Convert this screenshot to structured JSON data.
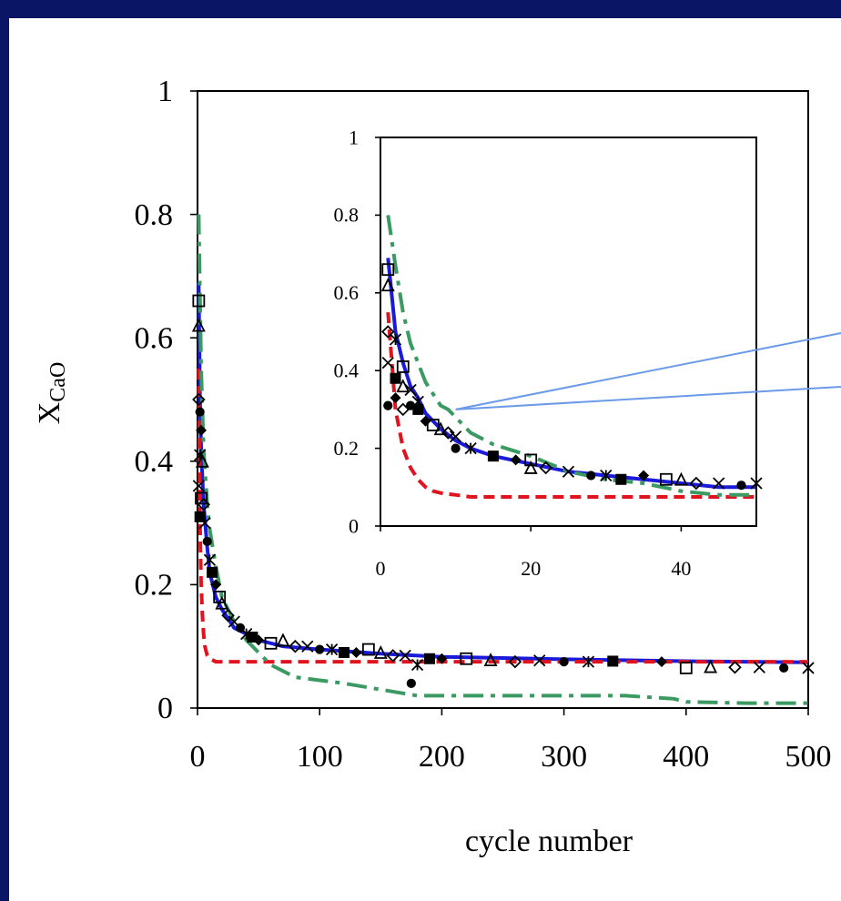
{
  "colors": {
    "background": "#0a1565",
    "panel": "#ffffff",
    "data_points": "#000000",
    "blue_curve": "#1a1adb",
    "red_curve": "#e0141e",
    "green_curve": "#3a9a62",
    "pointer_lines": "#6b9be8"
  },
  "chart_data": [
    {
      "type": "scatter",
      "title": "",
      "xlabel": "cycle number",
      "ylabel": "X",
      "ylabel_subscript": "CaO",
      "xlim": [
        0,
        500
      ],
      "ylim": [
        0,
        1
      ],
      "x_ticks": [
        "0",
        "100",
        "200",
        "300",
        "400",
        "500"
      ],
      "y_ticks": [
        "0",
        "0.2",
        "0.4",
        "0.6",
        "0.8",
        "1"
      ],
      "grid": false,
      "legend": "none",
      "series": [
        {
          "kind": "markers",
          "x": [
            1,
            1,
            1,
            1,
            2,
            2,
            2,
            3,
            3,
            4,
            5,
            6,
            8,
            10,
            12,
            15,
            18,
            20,
            25,
            30,
            35,
            40,
            45,
            50,
            60,
            70,
            80,
            90,
            100,
            110,
            120,
            130,
            140,
            150,
            160,
            170,
            175,
            180,
            190,
            200,
            220,
            240,
            260,
            280,
            300,
            320,
            340,
            380,
            400,
            420,
            440,
            460,
            480,
            500
          ],
          "y": [
            0.66,
            0.62,
            0.5,
            0.36,
            0.48,
            0.41,
            0.31,
            0.45,
            0.34,
            0.4,
            0.33,
            0.3,
            0.27,
            0.24,
            0.22,
            0.2,
            0.18,
            0.17,
            0.15,
            0.14,
            0.13,
            0.12,
            0.115,
            0.11,
            0.105,
            0.11,
            0.1,
            0.1,
            0.095,
            0.095,
            0.09,
            0.09,
            0.095,
            0.09,
            0.085,
            0.085,
            0.04,
            0.07,
            0.08,
            0.08,
            0.08,
            0.078,
            0.075,
            0.077,
            0.075,
            0.075,
            0.076,
            0.075,
            0.065,
            0.067,
            0.066,
            0.066,
            0.065,
            0.065
          ]
        },
        {
          "kind": "line",
          "style": "solid",
          "color": "#1a1adb",
          "x": [
            1,
            2,
            3,
            5,
            8,
            10,
            15,
            20,
            30,
            40,
            50,
            70,
            100,
            150,
            200,
            300,
            400,
            500
          ],
          "y": [
            0.69,
            0.5,
            0.42,
            0.33,
            0.26,
            0.22,
            0.18,
            0.16,
            0.13,
            0.12,
            0.11,
            0.1,
            0.095,
            0.088,
            0.083,
            0.079,
            0.076,
            0.074
          ]
        },
        {
          "kind": "line",
          "style": "dashed",
          "color": "#e0141e",
          "x": [
            1,
            2,
            3,
            4,
            5,
            6,
            8,
            10,
            12,
            15,
            20,
            30,
            50,
            100,
            200,
            300,
            400,
            500
          ],
          "y": [
            0.55,
            0.3,
            0.2,
            0.15,
            0.12,
            0.1,
            0.085,
            0.08,
            0.078,
            0.075,
            0.075,
            0.075,
            0.075,
            0.075,
            0.075,
            0.075,
            0.075,
            0.075
          ]
        },
        {
          "kind": "line",
          "style": "dash-dot",
          "color": "#3a9a62",
          "x": [
            1,
            3,
            5,
            8,
            10,
            15,
            20,
            30,
            40,
            60,
            80,
            100,
            120,
            150,
            180,
            200,
            250,
            300,
            350,
            390,
            400,
            450,
            500
          ],
          "y": [
            0.8,
            0.55,
            0.42,
            0.33,
            0.29,
            0.23,
            0.18,
            0.14,
            0.11,
            0.07,
            0.05,
            0.045,
            0.04,
            0.03,
            0.02,
            0.02,
            0.02,
            0.02,
            0.02,
            0.015,
            0.01,
            0.008,
            0.008
          ]
        }
      ]
    },
    {
      "type": "scatter",
      "title": "",
      "xlabel": "",
      "ylabel": "",
      "xlim": [
        0,
        50
      ],
      "ylim": [
        0,
        1
      ],
      "x_ticks": [
        "0",
        "20",
        "40"
      ],
      "y_ticks": [
        "0",
        "0.2",
        "0.4",
        "0.6",
        "0.8",
        "1"
      ],
      "grid": false,
      "legend": "none",
      "series": [
        {
          "kind": "markers",
          "x": [
            1,
            1,
            1,
            1,
            1,
            2,
            2,
            2,
            3,
            3,
            3,
            4,
            4,
            5,
            5,
            6,
            7,
            8,
            9,
            10,
            10,
            12,
            15,
            18,
            20,
            20,
            22,
            25,
            28,
            30,
            32,
            35,
            38,
            40,
            42,
            45,
            48,
            50
          ],
          "y": [
            0.66,
            0.62,
            0.5,
            0.42,
            0.31,
            0.48,
            0.38,
            0.33,
            0.41,
            0.36,
            0.3,
            0.35,
            0.31,
            0.32,
            0.3,
            0.27,
            0.26,
            0.25,
            0.24,
            0.23,
            0.2,
            0.2,
            0.18,
            0.17,
            0.17,
            0.15,
            0.15,
            0.14,
            0.13,
            0.13,
            0.12,
            0.13,
            0.12,
            0.12,
            0.11,
            0.11,
            0.105,
            0.11
          ]
        },
        {
          "kind": "line",
          "style": "solid",
          "color": "#1a1adb",
          "x": [
            1,
            2,
            3,
            4,
            5,
            6,
            8,
            10,
            12,
            15,
            20,
            25,
            30,
            35,
            40,
            45,
            50
          ],
          "y": [
            0.69,
            0.5,
            0.42,
            0.36,
            0.33,
            0.29,
            0.25,
            0.22,
            0.2,
            0.18,
            0.16,
            0.14,
            0.13,
            0.12,
            0.11,
            0.1,
            0.1
          ]
        },
        {
          "kind": "line",
          "style": "dashed",
          "color": "#e0141e",
          "x": [
            1,
            2,
            3,
            4,
            5,
            6,
            7,
            8,
            10,
            12,
            15,
            20,
            30,
            40,
            50
          ],
          "y": [
            0.55,
            0.3,
            0.2,
            0.15,
            0.12,
            0.1,
            0.09,
            0.085,
            0.08,
            0.075,
            0.075,
            0.075,
            0.075,
            0.075,
            0.075
          ]
        },
        {
          "kind": "line",
          "style": "dash-dot",
          "color": "#3a9a62",
          "x": [
            1,
            2,
            3,
            4,
            5,
            6,
            7,
            8,
            9,
            10,
            12,
            15,
            20,
            25,
            30,
            35,
            40,
            45,
            50
          ],
          "y": [
            0.8,
            0.67,
            0.55,
            0.47,
            0.42,
            0.37,
            0.34,
            0.31,
            0.3,
            0.28,
            0.24,
            0.21,
            0.18,
            0.14,
            0.12,
            0.11,
            0.09,
            0.08,
            0.08
          ]
        }
      ]
    }
  ]
}
